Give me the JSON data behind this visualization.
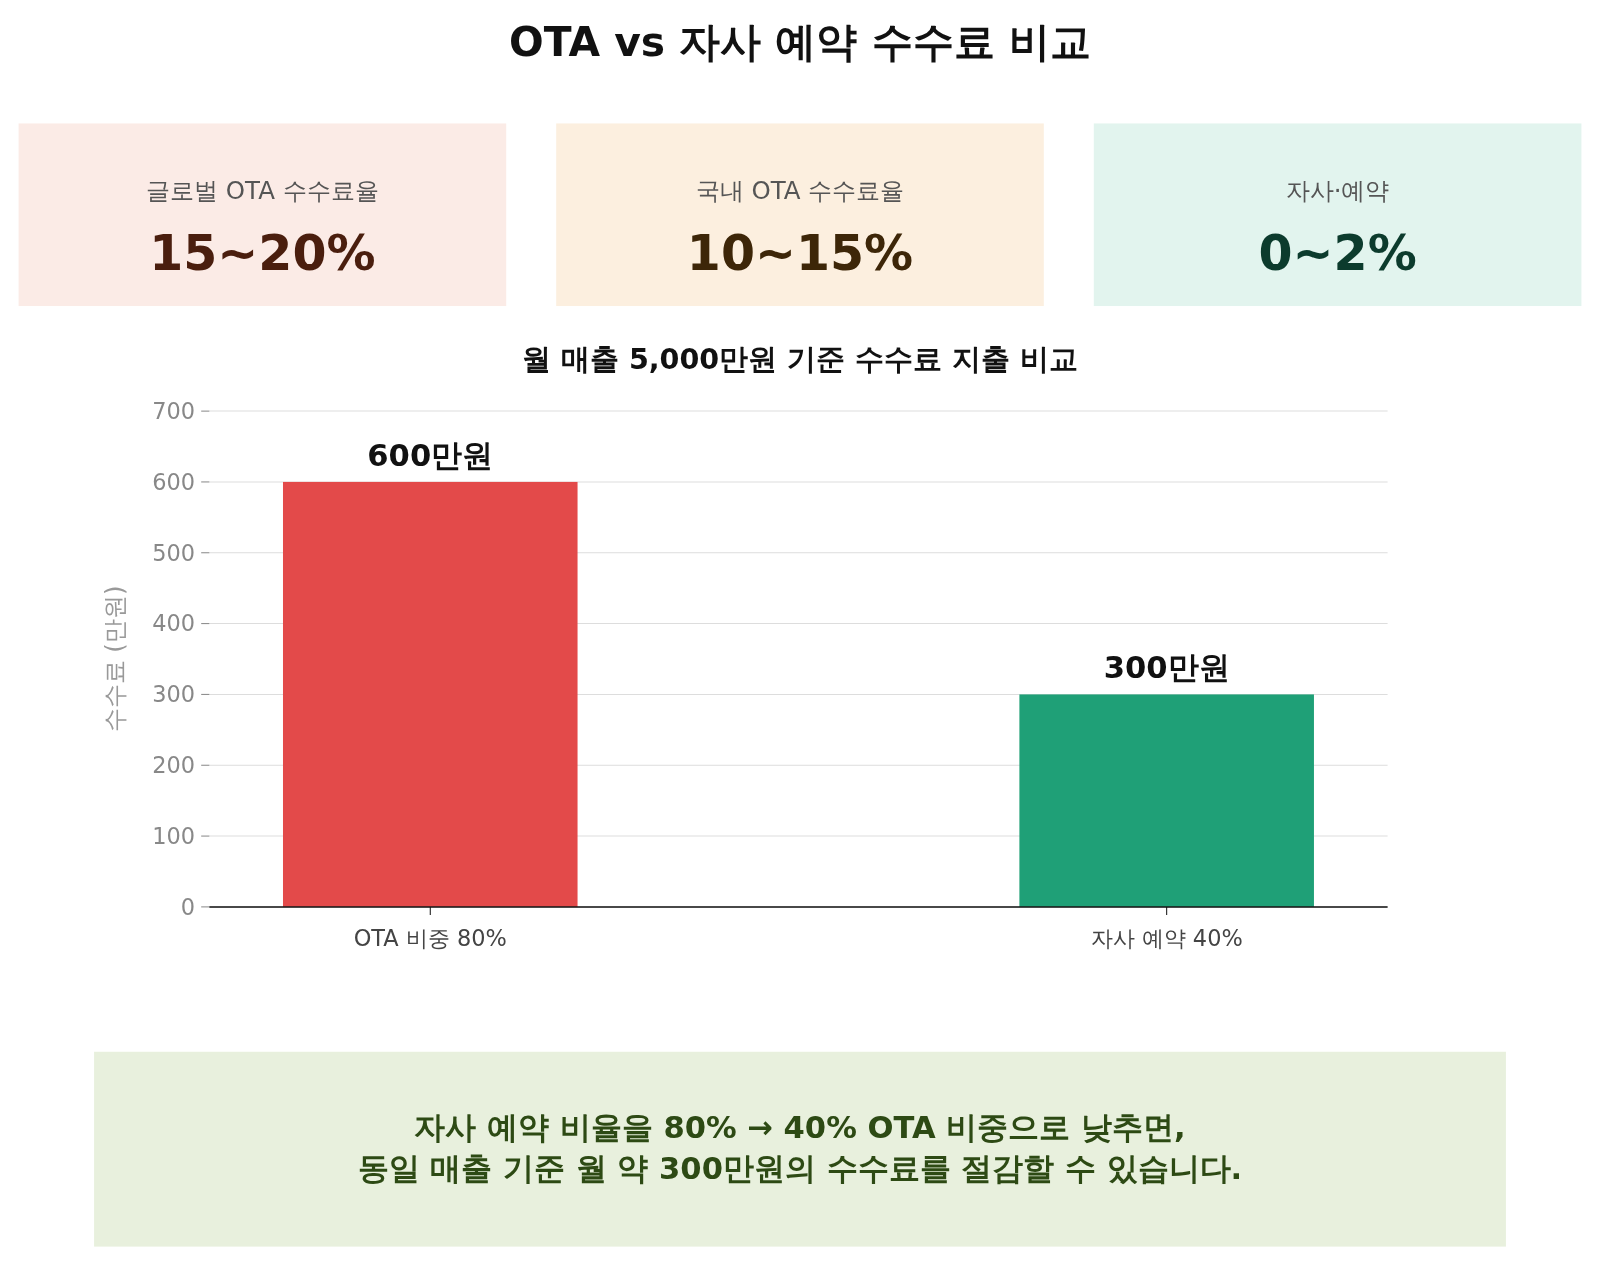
{
  "chart_data": [
    {
      "type": "other",
      "title": "OTA vs 자사 예약 수수료 비교"
    },
    {
      "type": "other",
      "title": "글로벌 OTA 수수료율",
      "annotations": [
        "15~20%"
      ],
      "color": "#fbebe6"
    },
    {
      "type": "other",
      "title": "국내 OTA 수수료율",
      "annotations": [
        "10~15%"
      ],
      "color": "#fcefdf"
    },
    {
      "type": "other",
      "title": "자사·예약",
      "annotations": [
        "0~2%"
      ],
      "color": "#e2f4ee"
    },
    {
      "type": "bar",
      "title": "월 매출 5,000만원 기준 수수료 지출 비교",
      "ylabel": "수수료 (만원)",
      "categories": [
        "OTA 비중 80%",
        "자사 예약 40%"
      ],
      "values": [
        600,
        300
      ],
      "colors": [
        "#e34a4a",
        "#1fa077"
      ],
      "value_labels": [
        "600만원",
        "300만원"
      ],
      "ylim": [
        0,
        700
      ],
      "yticks": [
        0,
        100,
        200,
        300,
        400,
        500,
        600,
        700
      ],
      "grid": "y",
      "annotations": [
        "자사 예약 비율을 80% → 40% OTA 비중으로 낮추면,",
        "동일 매출 기준 월 약 300만원의 수수료를 절감할 수 있습니다."
      ]
    }
  ]
}
